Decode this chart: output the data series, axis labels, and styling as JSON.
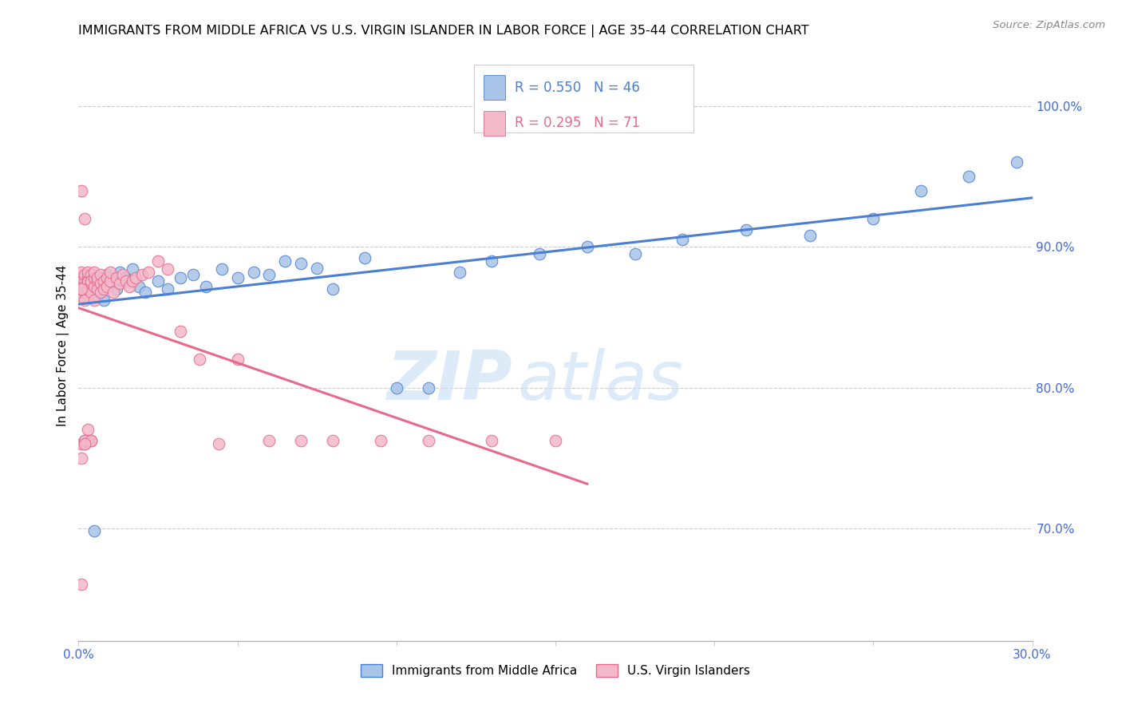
{
  "title": "IMMIGRANTS FROM MIDDLE AFRICA VS U.S. VIRGIN ISLANDER IN LABOR FORCE | AGE 35-44 CORRELATION CHART",
  "source": "Source: ZipAtlas.com",
  "ylabel": "In Labor Force | Age 35-44",
  "xlim": [
    0.0,
    0.3
  ],
  "ylim": [
    0.62,
    1.04
  ],
  "yticks_right": [
    0.7,
    0.8,
    0.9,
    1.0
  ],
  "ytick_labels_right": [
    "70.0%",
    "80.0%",
    "90.0%",
    "100.0%"
  ],
  "blue_R": 0.55,
  "blue_N": 46,
  "pink_R": 0.295,
  "pink_N": 71,
  "blue_color": "#a8c4e8",
  "pink_color": "#f4b8cb",
  "blue_line_color": "#4a7fd4",
  "pink_line_color": "#e8698a",
  "watermark_zip": "ZIP",
  "watermark_atlas": "atlas",
  "legend_label_blue": "Immigrants from Middle Africa",
  "legend_label_pink": "U.S. Virgin Islanders",
  "blue_scatter_x": [
    0.001,
    0.003,
    0.004,
    0.005,
    0.006,
    0.007,
    0.008,
    0.009,
    0.01,
    0.011,
    0.012,
    0.013,
    0.014,
    0.015,
    0.017,
    0.019,
    0.021,
    0.025,
    0.028,
    0.032,
    0.036,
    0.04,
    0.045,
    0.05,
    0.055,
    0.06,
    0.065,
    0.07,
    0.075,
    0.08,
    0.09,
    0.1,
    0.11,
    0.12,
    0.13,
    0.145,
    0.16,
    0.175,
    0.19,
    0.21,
    0.23,
    0.25,
    0.265,
    0.28,
    0.295,
    0.005
  ],
  "blue_scatter_y": [
    0.868,
    0.875,
    0.872,
    0.87,
    0.865,
    0.878,
    0.862,
    0.88,
    0.874,
    0.876,
    0.87,
    0.882,
    0.876,
    0.878,
    0.884,
    0.872,
    0.868,
    0.876,
    0.87,
    0.878,
    0.88,
    0.872,
    0.884,
    0.878,
    0.882,
    0.88,
    0.89,
    0.888,
    0.885,
    0.87,
    0.892,
    0.8,
    0.8,
    0.882,
    0.89,
    0.895,
    0.9,
    0.895,
    0.905,
    0.912,
    0.908,
    0.92,
    0.94,
    0.95,
    0.96,
    0.698
  ],
  "pink_scatter_x": [
    0.001,
    0.001,
    0.001,
    0.001,
    0.001,
    0.002,
    0.002,
    0.002,
    0.002,
    0.002,
    0.002,
    0.003,
    0.003,
    0.003,
    0.003,
    0.003,
    0.004,
    0.004,
    0.004,
    0.004,
    0.005,
    0.005,
    0.005,
    0.005,
    0.006,
    0.006,
    0.006,
    0.007,
    0.007,
    0.007,
    0.008,
    0.008,
    0.009,
    0.009,
    0.01,
    0.01,
    0.011,
    0.012,
    0.013,
    0.014,
    0.015,
    0.016,
    0.017,
    0.018,
    0.02,
    0.022,
    0.025,
    0.028,
    0.032,
    0.038,
    0.044,
    0.05,
    0.06,
    0.07,
    0.08,
    0.095,
    0.11,
    0.13,
    0.15,
    0.001,
    0.002,
    0.003,
    0.004,
    0.001,
    0.002,
    0.001,
    0.003,
    0.002,
    0.004,
    0.001,
    0.002
  ],
  "pink_scatter_y": [
    0.878,
    0.882,
    0.94,
    0.87,
    0.865,
    0.875,
    0.88,
    0.868,
    0.92,
    0.872,
    0.862,
    0.878,
    0.876,
    0.87,
    0.882,
    0.875,
    0.868,
    0.874,
    0.88,
    0.876,
    0.872,
    0.878,
    0.882,
    0.862,
    0.876,
    0.87,
    0.878,
    0.874,
    0.88,
    0.868,
    0.876,
    0.87,
    0.878,
    0.872,
    0.876,
    0.882,
    0.868,
    0.878,
    0.874,
    0.88,
    0.876,
    0.872,
    0.876,
    0.878,
    0.88,
    0.882,
    0.89,
    0.884,
    0.84,
    0.82,
    0.76,
    0.82,
    0.762,
    0.762,
    0.762,
    0.762,
    0.762,
    0.762,
    0.762,
    0.75,
    0.76,
    0.77,
    0.762,
    0.76,
    0.762,
    0.66,
    0.762,
    0.762,
    0.762,
    0.87,
    0.76
  ]
}
